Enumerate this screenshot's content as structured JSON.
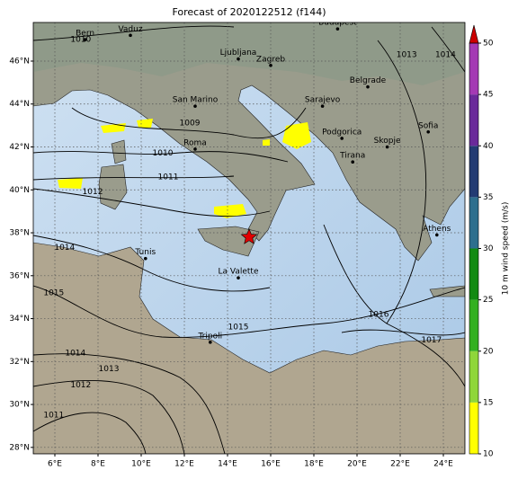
{
  "chart_data": {
    "type": "map",
    "title": "Forecast of 2020122512 (f144)",
    "xlim": [
      5,
      25
    ],
    "ylim": [
      27.7,
      47.8
    ],
    "xticks": [
      {
        "value": 6,
        "label": "6°E"
      },
      {
        "value": 8,
        "label": "8°E"
      },
      {
        "value": 10,
        "label": "10°E"
      },
      {
        "value": 12,
        "label": "12°E"
      },
      {
        "value": 14,
        "label": "14°E"
      },
      {
        "value": 16,
        "label": "16°E"
      },
      {
        "value": 18,
        "label": "18°E"
      },
      {
        "value": 20,
        "label": "20°E"
      },
      {
        "value": 22,
        "label": "22°E"
      },
      {
        "value": 24,
        "label": "24°E"
      }
    ],
    "yticks": [
      {
        "value": 28,
        "label": "28°N"
      },
      {
        "value": 30,
        "label": "30°N"
      },
      {
        "value": 32,
        "label": "32°N"
      },
      {
        "value": 34,
        "label": "34°N"
      },
      {
        "value": 36,
        "label": "36°N"
      },
      {
        "value": 38,
        "label": "38°N"
      },
      {
        "value": 40,
        "label": "40°N"
      },
      {
        "value": 42,
        "label": "42°N"
      },
      {
        "value": 44,
        "label": "44°N"
      },
      {
        "value": 46,
        "label": "46°N"
      }
    ],
    "grid": true,
    "cities": [
      {
        "name": "Bern",
        "lon": 7.4,
        "lat": 47.0
      },
      {
        "name": "Vaduz",
        "lon": 9.5,
        "lat": 47.2
      },
      {
        "name": "Budapest",
        "lon": 19.1,
        "lat": 47.5
      },
      {
        "name": "Ljubljana",
        "lon": 14.5,
        "lat": 46.1
      },
      {
        "name": "Zagreb",
        "lon": 16.0,
        "lat": 45.8
      },
      {
        "name": "Belgrade",
        "lon": 20.5,
        "lat": 44.8
      },
      {
        "name": "San Marino",
        "lon": 12.5,
        "lat": 43.9
      },
      {
        "name": "Sarajevo",
        "lon": 18.4,
        "lat": 43.9
      },
      {
        "name": "Sofia",
        "lon": 23.3,
        "lat": 42.7
      },
      {
        "name": "Podgorica",
        "lon": 19.3,
        "lat": 42.4
      },
      {
        "name": "Skopje",
        "lon": 21.4,
        "lat": 42.0
      },
      {
        "name": "Roma",
        "lon": 12.5,
        "lat": 41.9
      },
      {
        "name": "Tirana",
        "lon": 19.8,
        "lat": 41.3
      },
      {
        "name": "Athens",
        "lon": 23.7,
        "lat": 37.9
      },
      {
        "name": "Tunis",
        "lon": 10.2,
        "lat": 36.8
      },
      {
        "name": "La Valette",
        "lon": 14.5,
        "lat": 35.9
      },
      {
        "name": "Tripoli",
        "lon": 13.2,
        "lat": 32.9
      }
    ],
    "isobar_labels": [
      {
        "label": "1010",
        "lon": 7.2,
        "lat": 47.0
      },
      {
        "label": "1013",
        "lon": 22.3,
        "lat": 46.3
      },
      {
        "label": "1014",
        "lon": 24.1,
        "lat": 46.3
      },
      {
        "label": "1009",
        "lon": 12.25,
        "lat": 43.1
      },
      {
        "label": "1010",
        "lon": 11.0,
        "lat": 41.7
      },
      {
        "label": "1011",
        "lon": 11.25,
        "lat": 40.6
      },
      {
        "label": "1012",
        "lon": 7.75,
        "lat": 39.9
      },
      {
        "label": "1014",
        "lon": 6.45,
        "lat": 37.3
      },
      {
        "label": "1015",
        "lon": 5.95,
        "lat": 35.2
      },
      {
        "label": "1014",
        "lon": 6.95,
        "lat": 32.4
      },
      {
        "label": "1013",
        "lon": 8.5,
        "lat": 31.65
      },
      {
        "label": "1012",
        "lon": 7.2,
        "lat": 30.9
      },
      {
        "label": "1011",
        "lon": 5.95,
        "lat": 29.5
      },
      {
        "label": "1015",
        "lon": 14.5,
        "lat": 33.6
      },
      {
        "label": "1016",
        "lon": 21.0,
        "lat": 34.2
      },
      {
        "label": "1017",
        "lon": 23.45,
        "lat": 33.0
      }
    ],
    "marker": {
      "lon": 15.0,
      "lat": 37.8,
      "color": "#e00000"
    },
    "colorbar": {
      "label": "10 m wind speed (m/s)",
      "lim": [
        10,
        50
      ],
      "ticks": [
        10,
        15,
        20,
        25,
        30,
        35,
        40,
        45,
        50
      ],
      "colors": [
        "#ffff00",
        "#8fd63a",
        "#33b020",
        "#128a12",
        "#2e6f8e",
        "#233b73",
        "#6a2a9a",
        "#a43ab4"
      ],
      "extend_color": "#cc0000"
    }
  }
}
